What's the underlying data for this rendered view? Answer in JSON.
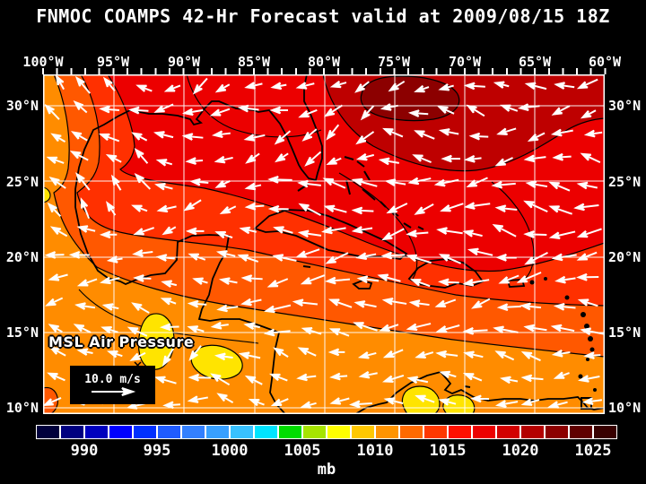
{
  "title": "FNMOC COAMPS 42-Hr Forecast valid at 2009/08/15 18Z",
  "field_label": "MSL Air Pressure",
  "vector_legend": {
    "speed_label": "10.0 m/s"
  },
  "axes": {
    "lon": [
      "100°W",
      "95°W",
      "90°W",
      "85°W",
      "80°W",
      "75°W",
      "70°W",
      "65°W",
      "60°W"
    ],
    "lat": [
      "30°N",
      "25°N",
      "20°N",
      "15°N",
      "10°N"
    ]
  },
  "colorbar": {
    "unit": "mb",
    "ticks": [
      "990",
      "995",
      "1000",
      "1005",
      "1010",
      "1015",
      "1020",
      "1025"
    ],
    "segment_colors": [
      "#00003C",
      "#000080",
      "#0000BE",
      "#0000FF",
      "#0030FF",
      "#205CFF",
      "#3380FF",
      "#38A0FF",
      "#38C2FF",
      "#00E4FF",
      "#00DC00",
      "#A6E400",
      "#FFFF00",
      "#FFC800",
      "#FF9400",
      "#FF6A00",
      "#FF3800",
      "#FF1000",
      "#EC0000",
      "#D20000",
      "#B40000",
      "#8C0000",
      "#600000",
      "#380000"
    ]
  },
  "wind_field": {
    "description": "Surface wind vectors, predominantly easterly trade winds (arrows point westward)",
    "reference_speed_mps": 10.0,
    "grid": {
      "cols": 20,
      "rows": 14
    }
  },
  "pressure_field": {
    "high_region": "dark red shading (~1019-1022 mb) over the northeast / western Atlantic",
    "low_regions": "yellow patches (~1010 mb) near Honduras and the Venezuelan coast",
    "band_colors_sw_to_ne": [
      "#FFE400",
      "#FF8C00",
      "#FF5800",
      "#FF3000",
      "#EC0000",
      "#BE0000",
      "#8C0000"
    ]
  },
  "colors": {
    "background": "#000000",
    "text": "#FFFFFF",
    "gridlines": "#FFFFFF",
    "coastline": "#000000",
    "wind_vectors": "#FFFFFF"
  }
}
